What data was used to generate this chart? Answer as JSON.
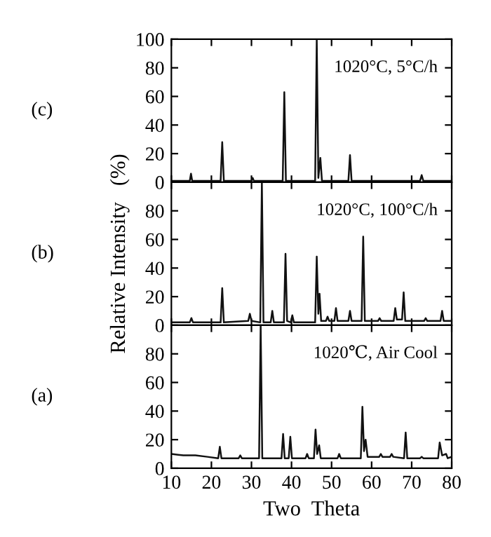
{
  "chart_data": [
    {
      "type": "line",
      "annotations": [
        "(c)",
        "1020°C, 5°C/h"
      ],
      "tick_labels": "y",
      "xlim": [
        10,
        80
      ],
      "xticks": [
        10,
        20,
        30,
        40,
        50,
        60,
        70,
        80
      ],
      "ylim": [
        0,
        100
      ],
      "yticks": [
        0,
        20,
        40,
        60,
        80,
        100
      ],
      "grid": false,
      "legend": false,
      "series": [
        {
          "color": "#111111",
          "x": [
            10,
            14.6,
            14.9,
            15.2,
            22.3,
            22.7,
            23.1,
            30.0,
            30.3,
            30.6,
            37.8,
            38.2,
            38.6,
            45.9,
            46.3,
            46.7,
            47.2,
            47.6,
            54.2,
            54.6,
            55.0,
            72.1,
            72.5,
            72.9,
            80
          ],
          "values": [
            1,
            1,
            6,
            1,
            1,
            28,
            1,
            1,
            3,
            1,
            1,
            63,
            1,
            1,
            100,
            3,
            17,
            1,
            1,
            19,
            1,
            1,
            5,
            1,
            1
          ]
        }
      ]
    },
    {
      "type": "line",
      "annotations": [
        "(b)",
        "1020°C, 100°C/h"
      ],
      "ylabel": "Relative Intensity   (%)",
      "tick_labels": "y",
      "xlim": [
        10,
        80
      ],
      "xticks": [
        10,
        20,
        30,
        40,
        50,
        60,
        70,
        80
      ],
      "ylim": [
        0,
        100
      ],
      "yticks": [
        0,
        20,
        40,
        60,
        80
      ],
      "grid": false,
      "legend": false,
      "series": [
        {
          "color": "#111111",
          "x": [
            10,
            14.6,
            15,
            15.4,
            22.3,
            22.7,
            23.1,
            29.2,
            29.6,
            30.0,
            32.2,
            32.6,
            33.0,
            34.8,
            35.2,
            35.6,
            38.1,
            38.5,
            38.9,
            39.8,
            40.2,
            40.6,
            45.9,
            46.3,
            46.7,
            47.0,
            47.4,
            48.6,
            49,
            49.4,
            50.7,
            51.1,
            51.5,
            54.2,
            54.6,
            55.0,
            57.5,
            57.9,
            58.3,
            61.6,
            62,
            62.4,
            65.5,
            65.9,
            66.3,
            67.6,
            68.0,
            68.4,
            73.1,
            73.5,
            73.9,
            77.2,
            77.6,
            78.0,
            80
          ],
          "values": [
            2,
            2,
            5,
            2,
            2,
            26,
            2,
            3,
            8,
            3,
            2,
            100,
            2,
            2,
            10,
            2,
            2,
            50,
            3,
            2,
            7,
            2,
            2,
            48,
            8,
            22,
            3,
            3,
            6,
            3,
            3,
            12,
            3,
            3,
            10,
            3,
            3,
            62,
            3,
            3,
            5,
            3,
            3,
            12,
            4,
            4,
            23,
            3,
            3,
            5,
            3,
            3,
            10,
            3,
            3
          ]
        }
      ]
    },
    {
      "type": "line",
      "annotations": [
        "(a)",
        "1020℃, Air Cool"
      ],
      "xlabel": "Two  Theta",
      "xlim": [
        10,
        80
      ],
      "xticks": [
        10,
        20,
        30,
        40,
        50,
        60,
        70,
        80
      ],
      "ylim": [
        0,
        100
      ],
      "yticks": [
        0,
        20,
        40,
        60,
        80
      ],
      "grid": false,
      "legend": false,
      "series": [
        {
          "color": "#111111",
          "x": [
            10,
            13,
            16,
            19,
            21.7,
            22.1,
            22.5,
            26.8,
            27.2,
            27.6,
            31.9,
            32.3,
            32.7,
            37.5,
            37.9,
            38.3,
            39.3,
            39.7,
            40.1,
            43.5,
            43.9,
            44.3,
            45.6,
            46.0,
            46.4,
            46.9,
            47.3,
            51.5,
            51.9,
            52.3,
            57.3,
            57.7,
            58.1,
            58.5,
            59.0,
            61.9,
            62.3,
            62.7,
            64.6,
            65,
            65.4,
            68.1,
            68.5,
            68.9,
            72.1,
            72.5,
            72.9,
            76.6,
            77,
            77.6,
            78.6,
            79,
            80
          ],
          "values": [
            10,
            9,
            9,
            8,
            7,
            15,
            7,
            7,
            9,
            7,
            7,
            100,
            7,
            7,
            24,
            7,
            7,
            22,
            7,
            7,
            10,
            7,
            7,
            27,
            10,
            16,
            7,
            7,
            10,
            7,
            7,
            43,
            12,
            20,
            8,
            8,
            10,
            8,
            8,
            10,
            8,
            7,
            25,
            7,
            7,
            8,
            7,
            7,
            18,
            9,
            10,
            7,
            8
          ]
        }
      ]
    }
  ]
}
